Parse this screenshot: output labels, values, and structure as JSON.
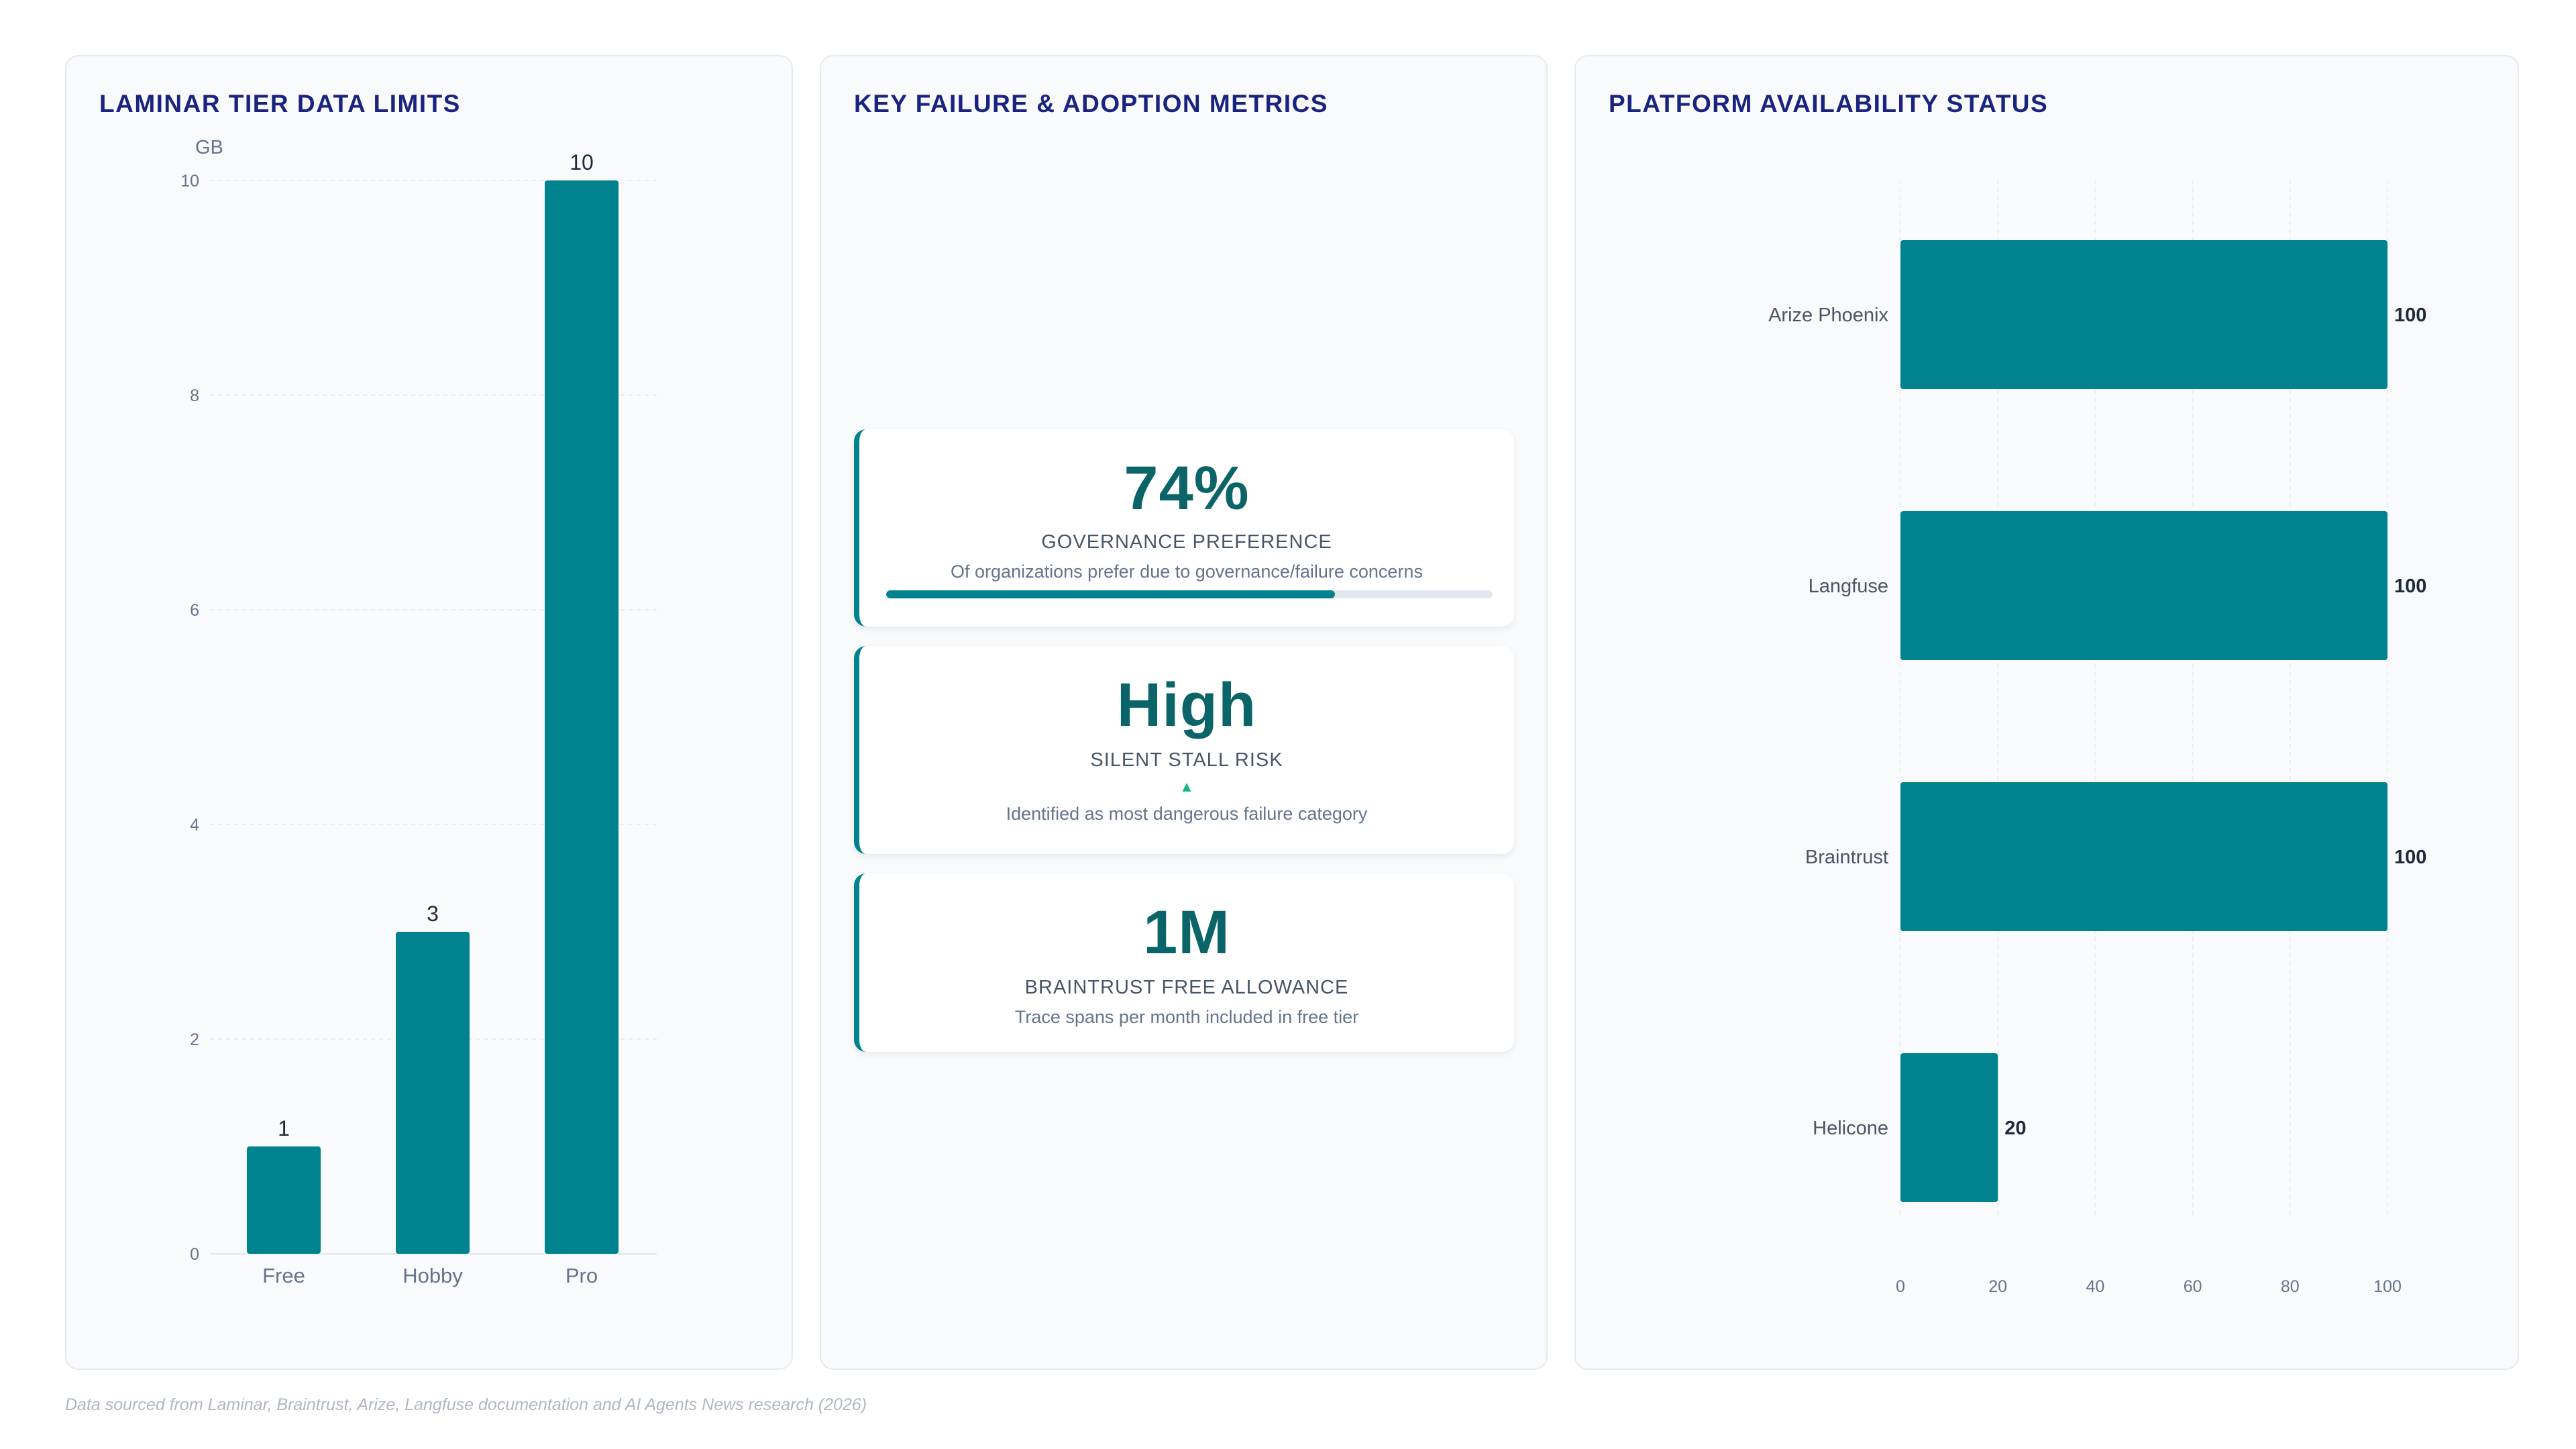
{
  "colors": {
    "bar": "#00838f",
    "title": "#1a237e",
    "kpi_value": "#0b6468",
    "accent_arrow": "#10b981"
  },
  "charts": {
    "laminar": {
      "title": "LAMINAR TIER DATA LIMITS",
      "unit": "GB",
      "chart_index": 0
    },
    "availability": {
      "title": "PLATFORM AVAILABILITY STATUS",
      "chart_index": 1
    }
  },
  "metrics": {
    "title": "KEY FAILURE & ADOPTION METRICS",
    "cards": [
      {
        "value": "74%",
        "label": "GOVERNANCE PREFERENCE",
        "desc": "Of organizations prefer due to governance/failure concerns",
        "progress": 0.74
      },
      {
        "value": "High",
        "label": "SILENT STALL RISK",
        "indicator": "up-arrow-icon",
        "desc": "Identified as most dangerous failure category"
      },
      {
        "value": "1M",
        "label": "BRAINTRUST FREE ALLOWANCE",
        "desc": "Trace spans per month included in free tier"
      }
    ]
  },
  "footer": "Data sourced from Laminar, Braintrust, Arize, Langfuse documentation and AI Agents News research (2026)",
  "chart_data": [
    {
      "type": "bar",
      "title": "LAMINAR TIER DATA LIMITS",
      "categories": [
        "Free",
        "Hobby",
        "Pro"
      ],
      "values": [
        1,
        3,
        10
      ],
      "ylabel": "GB",
      "ylim": [
        0,
        10
      ],
      "yticks": [
        0,
        2,
        4,
        6,
        8,
        10
      ],
      "data_labels": true,
      "grid": true
    },
    {
      "type": "bar",
      "orientation": "horizontal",
      "title": "PLATFORM AVAILABILITY STATUS",
      "categories": [
        "Arize Phoenix",
        "Langfuse",
        "Braintrust",
        "Helicone"
      ],
      "values": [
        100,
        100,
        100,
        20
      ],
      "xlim": [
        0,
        100
      ],
      "xticks": [
        0,
        20,
        40,
        60,
        80,
        100
      ],
      "data_labels": true,
      "grid": true
    }
  ]
}
